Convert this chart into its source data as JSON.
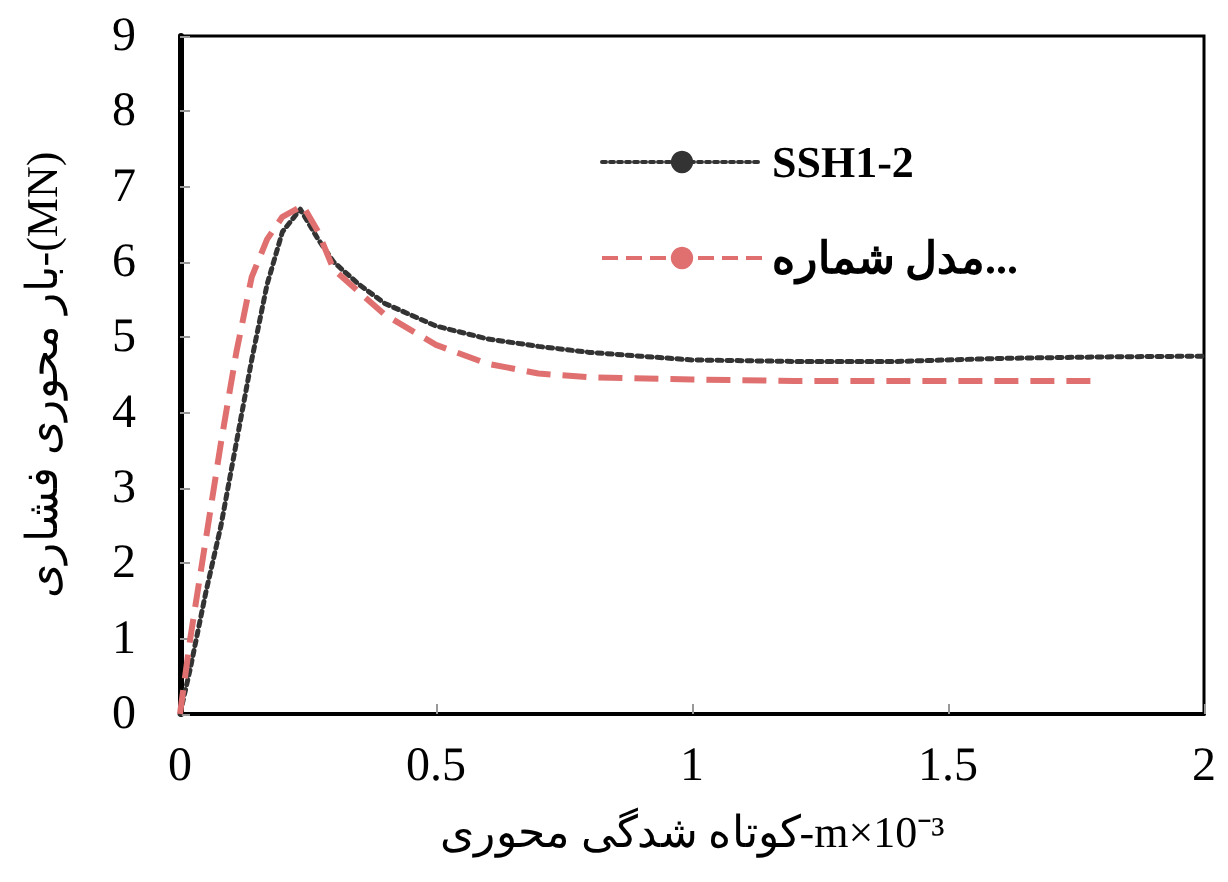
{
  "chart_data": {
    "type": "line",
    "xlabel": "کوتاه شدگی محوری-m×10⁻³",
    "ylabel": "بار محوری فشاری-(MN)",
    "xlim": [
      0,
      2
    ],
    "xticks": [
      0,
      0.5,
      1,
      1.5,
      2
    ],
    "ylim": [
      0,
      9
    ],
    "yticks": [
      0,
      1,
      2,
      3,
      4,
      5,
      6,
      7,
      8,
      9
    ],
    "grid": false,
    "legend": "top right",
    "marker": "none",
    "series": [
      {
        "name": "SSH1-2",
        "color": "#333333",
        "line_style": "dotted",
        "x": [
          0,
          0.02,
          0.05,
          0.08,
          0.11,
          0.14,
          0.17,
          0.2,
          0.235,
          0.27,
          0.3,
          0.35,
          0.4,
          0.5,
          0.6,
          0.7,
          0.8,
          0.9,
          1.0,
          1.2,
          1.4,
          1.6,
          1.8,
          2.0
        ],
        "values": [
          0,
          0.6,
          1.6,
          2.5,
          3.6,
          4.7,
          5.7,
          6.4,
          6.7,
          6.3,
          6.0,
          5.7,
          5.45,
          5.15,
          4.98,
          4.88,
          4.8,
          4.75,
          4.7,
          4.68,
          4.68,
          4.72,
          4.74,
          4.75
        ]
      },
      {
        "name": "مدل شماره...",
        "color": "#e07070",
        "line_style": "dashed",
        "x": [
          0,
          0.02,
          0.05,
          0.08,
          0.11,
          0.14,
          0.17,
          0.2,
          0.24,
          0.27,
          0.3,
          0.35,
          0.4,
          0.5,
          0.6,
          0.7,
          0.8,
          1.0,
          1.2,
          1.5,
          1.78
        ],
        "values": [
          0,
          1.0,
          2.3,
          3.6,
          4.8,
          5.8,
          6.3,
          6.6,
          6.75,
          6.4,
          5.9,
          5.6,
          5.3,
          4.9,
          4.65,
          4.52,
          4.47,
          4.44,
          4.42,
          4.42,
          4.42
        ]
      }
    ]
  }
}
